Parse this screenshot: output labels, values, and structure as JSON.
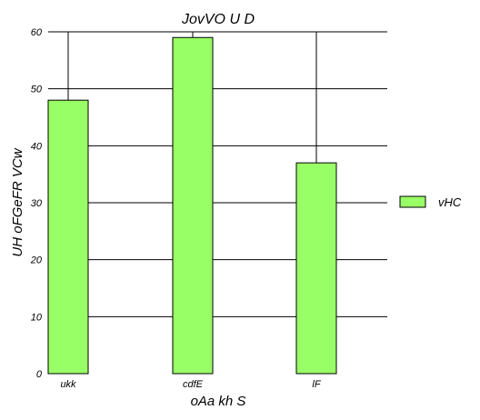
{
  "chart_data": {
    "type": "bar",
    "title": "JovVO U D",
    "xlabel": "oAa kh  S",
    "ylabel": "UH oFGeFR VCw",
    "categories": [
      "ukk",
      "cdfE",
      "lF"
    ],
    "series": [
      {
        "name": "vHC",
        "values": [
          48,
          59,
          37
        ],
        "color": "#99ff66"
      }
    ],
    "ylim": [
      0,
      60
    ],
    "yticks": [
      0,
      10,
      20,
      30,
      40,
      50,
      60
    ],
    "grid": true,
    "legend": "right"
  }
}
